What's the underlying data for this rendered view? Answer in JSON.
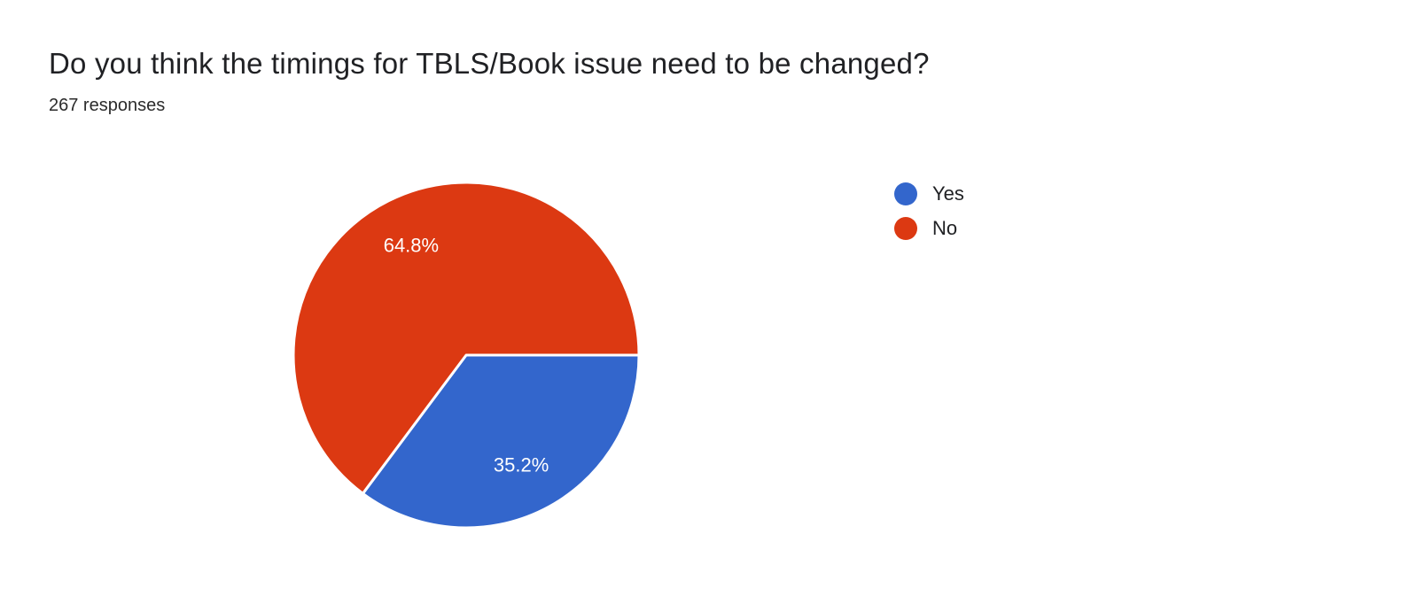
{
  "chart_data": {
    "type": "pie",
    "title": "Do you think the timings for TBLS/Book issue need to be changed?",
    "subtitle": "267 responses",
    "legend_position": "right",
    "start_angle_deg": 0,
    "direction": "clockwise",
    "total_responses": 267,
    "slice_label_color": "#ffffff",
    "slice_separator_color": "#ffffff",
    "slices": [
      {
        "label": "Yes",
        "percent": 35.2,
        "display": "35.2%",
        "color": "#3366CC"
      },
      {
        "label": "No",
        "percent": 64.8,
        "display": "64.8%",
        "color": "#DC3912"
      }
    ]
  }
}
